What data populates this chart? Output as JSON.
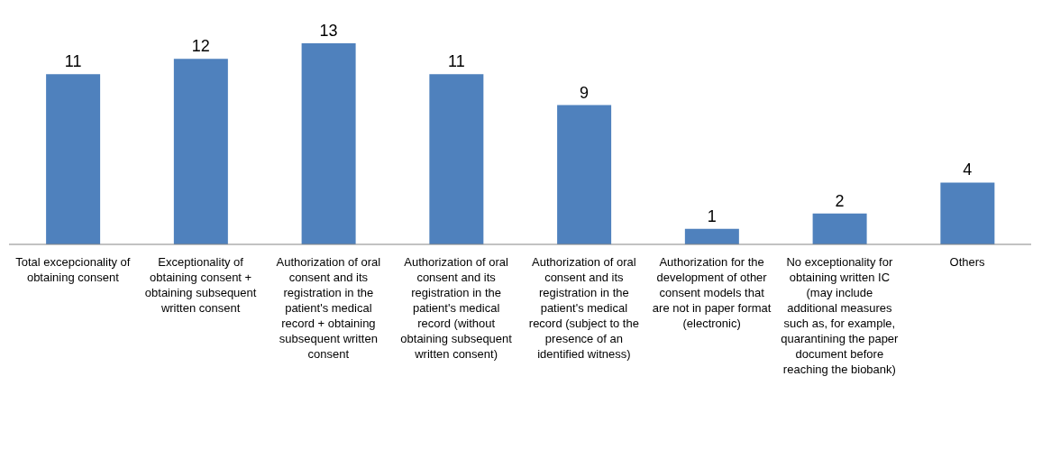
{
  "chart_data": {
    "type": "bar",
    "categories": [
      "Total excepcionality of obtaining consent",
      "Exceptionality of obtaining consent + obtaining subsequent written consent",
      "Authorization of oral consent and its registration in the patient's medical record + obtaining subsequent written consent",
      "Authorization of oral consent and its registration in the patient's medical record (without obtaining subsequent written consent)",
      "Authorization of oral consent and its registration in the patient's medical record (subject to the presence of an identified witness)",
      "Authorization for the development of other consent models that are not in paper format (electronic)",
      "No exceptionality for obtaining written IC (may include additional measures such as, for example, quarantining the paper document before reaching the biobank)",
      "Others"
    ],
    "values": [
      11,
      12,
      13,
      11,
      9,
      1,
      2,
      4
    ],
    "color": "#4f81bd",
    "data_labels": true,
    "grid": false,
    "legend": false
  }
}
